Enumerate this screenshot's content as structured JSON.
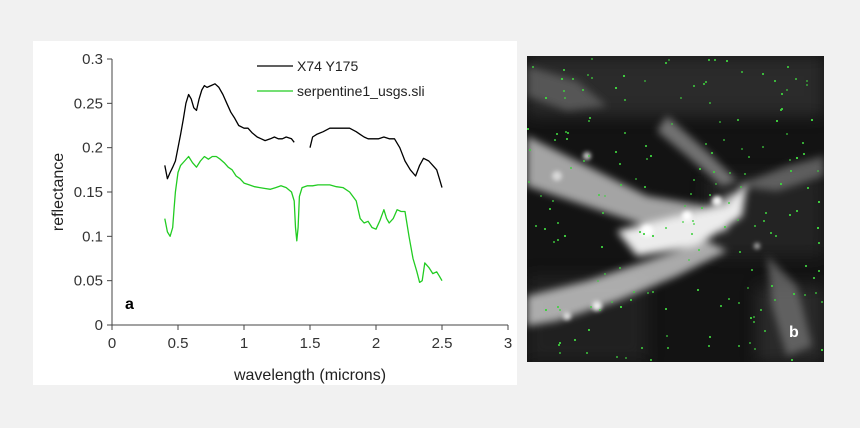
{
  "chart_data": {
    "type": "line",
    "xlabel": "wavelength (microns)",
    "ylabel": "reflectance",
    "xlim": [
      0,
      3
    ],
    "ylim": [
      0,
      0.3
    ],
    "xticks": [
      "0",
      "0.5",
      "1",
      "1.5",
      "2",
      "2.5",
      "3"
    ],
    "yticks": [
      "0",
      "0.05",
      "0.1",
      "0.15",
      "0.2",
      "0.25",
      "0.3"
    ],
    "grid": false,
    "legend_position": "top-right",
    "series": [
      {
        "name": "X74 Y175",
        "color": "#000000",
        "segments": [
          [
            [
              0.4,
              0.18
            ],
            [
              0.42,
              0.165
            ],
            [
              0.44,
              0.172
            ],
            [
              0.46,
              0.178
            ],
            [
              0.48,
              0.185
            ],
            [
              0.5,
              0.2
            ],
            [
              0.52,
              0.215
            ],
            [
              0.54,
              0.232
            ],
            [
              0.56,
              0.25
            ],
            [
              0.58,
              0.26
            ],
            [
              0.6,
              0.255
            ],
            [
              0.62,
              0.245
            ],
            [
              0.64,
              0.242
            ],
            [
              0.66,
              0.255
            ],
            [
              0.68,
              0.265
            ],
            [
              0.7,
              0.27
            ],
            [
              0.72,
              0.268
            ],
            [
              0.75,
              0.27
            ],
            [
              0.78,
              0.272
            ],
            [
              0.81,
              0.268
            ],
            [
              0.84,
              0.26
            ],
            [
              0.87,
              0.25
            ],
            [
              0.9,
              0.24
            ],
            [
              0.93,
              0.233
            ],
            [
              0.96,
              0.225
            ],
            [
              1.0,
              0.222
            ],
            [
              1.03,
              0.222
            ],
            [
              1.06,
              0.217
            ],
            [
              1.1,
              0.212
            ],
            [
              1.13,
              0.21
            ],
            [
              1.16,
              0.208
            ],
            [
              1.2,
              0.21
            ],
            [
              1.23,
              0.212
            ],
            [
              1.26,
              0.21
            ],
            [
              1.29,
              0.21
            ],
            [
              1.32,
              0.212
            ],
            [
              1.36,
              0.21
            ],
            [
              1.38,
              0.206
            ]
          ],
          [
            [
              1.5,
              0.2
            ],
            [
              1.52,
              0.212
            ],
            [
              1.55,
              0.215
            ],
            [
              1.6,
              0.218
            ],
            [
              1.65,
              0.222
            ],
            [
              1.7,
              0.222
            ],
            [
              1.75,
              0.222
            ],
            [
              1.8,
              0.222
            ],
            [
              1.85,
              0.218
            ],
            [
              1.88,
              0.215
            ],
            [
              1.91,
              0.212
            ],
            [
              1.94,
              0.21
            ],
            [
              1.98,
              0.21
            ],
            [
              2.02,
              0.21
            ],
            [
              2.06,
              0.212
            ],
            [
              2.1,
              0.21
            ],
            [
              2.14,
              0.21
            ],
            [
              2.18,
              0.2
            ],
            [
              2.22,
              0.185
            ],
            [
              2.26,
              0.175
            ],
            [
              2.3,
              0.168
            ],
            [
              2.33,
              0.18
            ],
            [
              2.36,
              0.188
            ],
            [
              2.4,
              0.185
            ],
            [
              2.43,
              0.18
            ],
            [
              2.46,
              0.175
            ],
            [
              2.48,
              0.165
            ],
            [
              2.5,
              0.155
            ]
          ]
        ]
      },
      {
        "name": "serpentine1_usgs.sli",
        "color": "#22cc22",
        "segments": [
          [
            [
              0.4,
              0.12
            ],
            [
              0.42,
              0.105
            ],
            [
              0.44,
              0.1
            ],
            [
              0.46,
              0.11
            ],
            [
              0.47,
              0.13
            ],
            [
              0.48,
              0.15
            ],
            [
              0.5,
              0.172
            ],
            [
              0.52,
              0.18
            ],
            [
              0.55,
              0.185
            ],
            [
              0.58,
              0.19
            ],
            [
              0.61,
              0.183
            ],
            [
              0.64,
              0.178
            ],
            [
              0.67,
              0.185
            ],
            [
              0.7,
              0.19
            ],
            [
              0.73,
              0.187
            ],
            [
              0.76,
              0.19
            ],
            [
              0.79,
              0.19
            ],
            [
              0.82,
              0.187
            ],
            [
              0.85,
              0.183
            ],
            [
              0.88,
              0.178
            ],
            [
              0.91,
              0.175
            ],
            [
              0.94,
              0.168
            ],
            [
              0.97,
              0.165
            ],
            [
              1.0,
              0.16
            ],
            [
              1.04,
              0.158
            ],
            [
              1.08,
              0.156
            ],
            [
              1.12,
              0.155
            ],
            [
              1.16,
              0.154
            ],
            [
              1.2,
              0.153
            ],
            [
              1.24,
              0.155
            ],
            [
              1.28,
              0.157
            ],
            [
              1.32,
              0.155
            ],
            [
              1.36,
              0.15
            ],
            [
              1.38,
              0.14
            ],
            [
              1.39,
              0.11
            ],
            [
              1.4,
              0.095
            ],
            [
              1.41,
              0.11
            ],
            [
              1.42,
              0.145
            ],
            [
              1.44,
              0.155
            ],
            [
              1.48,
              0.157
            ],
            [
              1.52,
              0.157
            ],
            [
              1.56,
              0.158
            ],
            [
              1.6,
              0.158
            ],
            [
              1.65,
              0.158
            ],
            [
              1.7,
              0.156
            ],
            [
              1.75,
              0.155
            ],
            [
              1.8,
              0.15
            ],
            [
              1.85,
              0.14
            ],
            [
              1.88,
              0.12
            ],
            [
              1.91,
              0.115
            ],
            [
              1.94,
              0.117
            ],
            [
              1.97,
              0.11
            ],
            [
              2.0,
              0.108
            ],
            [
              2.03,
              0.118
            ],
            [
              2.06,
              0.13
            ],
            [
              2.08,
              0.12
            ],
            [
              2.1,
              0.115
            ],
            [
              2.13,
              0.12
            ],
            [
              2.16,
              0.13
            ],
            [
              2.19,
              0.128
            ],
            [
              2.22,
              0.128
            ],
            [
              2.25,
              0.1
            ],
            [
              2.28,
              0.075
            ],
            [
              2.31,
              0.06
            ],
            [
              2.33,
              0.048
            ],
            [
              2.35,
              0.05
            ],
            [
              2.37,
              0.07
            ],
            [
              2.4,
              0.065
            ],
            [
              2.43,
              0.058
            ],
            [
              2.46,
              0.06
            ],
            [
              2.48,
              0.055
            ],
            [
              2.5,
              0.05
            ]
          ]
        ]
      }
    ],
    "annotations": [
      "a"
    ]
  },
  "image_panel": {
    "label": "b",
    "description_colors": {
      "background": "#111111",
      "highlight": "#e8e8e8",
      "pixels": "#3fd13f"
    }
  }
}
